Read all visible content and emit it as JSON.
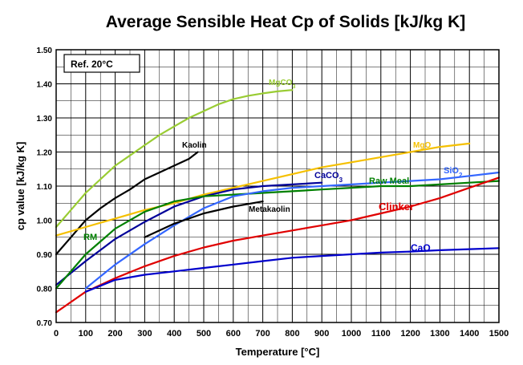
{
  "chart_data": {
    "type": "line",
    "title": "Average Sensible Heat Cp of Solids [kJ/kg K]",
    "xlabel": "Temperature [°C]",
    "ylabel": "cp value [kJ/kg K]",
    "annotation": "Ref. 20°C",
    "xlim": [
      0,
      1500
    ],
    "ylim": [
      0.7,
      1.5
    ],
    "xticks": [
      0,
      100,
      200,
      300,
      400,
      500,
      600,
      700,
      800,
      900,
      1000,
      1100,
      1200,
      1300,
      1400,
      1500
    ],
    "yticks": [
      "0.70",
      "0.80",
      "0.90",
      "1.00",
      "1.10",
      "1.20",
      "1.30",
      "1.40",
      "1.50"
    ],
    "grid": true,
    "series": [
      {
        "name": "MgCO3",
        "label_main": "MgCO",
        "label_sub": "3",
        "color": "#99cc33",
        "x": [
          0,
          50,
          100,
          150,
          200,
          250,
          300,
          350,
          400,
          450,
          500,
          550,
          600,
          650,
          700,
          750,
          800
        ],
        "y": [
          0.98,
          1.03,
          1.08,
          1.12,
          1.16,
          1.19,
          1.22,
          1.25,
          1.275,
          1.3,
          1.32,
          1.34,
          1.355,
          1.365,
          1.372,
          1.378,
          1.382
        ]
      },
      {
        "name": "Kaolin",
        "label_main": "Kaolin",
        "color": "#000000",
        "x": [
          0,
          50,
          100,
          150,
          200,
          250,
          300,
          350,
          400,
          450,
          480
        ],
        "y": [
          0.9,
          0.95,
          1.0,
          1.035,
          1.065,
          1.09,
          1.12,
          1.14,
          1.16,
          1.18,
          1.2
        ]
      },
      {
        "name": "MgO",
        "label_main": "MgO",
        "color": "#f5c000",
        "x": [
          0,
          100,
          200,
          300,
          400,
          500,
          600,
          700,
          800,
          900,
          1000,
          1100,
          1200,
          1300,
          1400
        ],
        "y": [
          0.955,
          0.98,
          1.005,
          1.03,
          1.05,
          1.075,
          1.095,
          1.115,
          1.135,
          1.155,
          1.17,
          1.185,
          1.2,
          1.215,
          1.225
        ]
      },
      {
        "name": "CaCO3",
        "label_main": "CaCO",
        "label_sub": "3",
        "color": "#000099",
        "x": [
          0,
          100,
          200,
          300,
          400,
          500,
          600,
          700,
          800,
          900
        ],
        "y": [
          0.81,
          0.88,
          0.945,
          0.995,
          1.04,
          1.07,
          1.09,
          1.1,
          1.105,
          1.11
        ]
      },
      {
        "name": "Raw Meal",
        "label_main": "Raw Meal",
        "color": "#008000",
        "x": [
          0,
          100,
          200,
          300,
          400,
          500,
          600,
          700,
          800,
          900,
          1000,
          1100,
          1200,
          1300,
          1400,
          1500
        ],
        "y": [
          0.8,
          0.9,
          0.975,
          1.025,
          1.055,
          1.07,
          1.075,
          1.08,
          1.085,
          1.09,
          1.095,
          1.1,
          1.1,
          1.105,
          1.11,
          1.115
        ]
      },
      {
        "name": "SiO2",
        "label_main": "SiO",
        "label_sub": "2",
        "color": "#3366ff",
        "x": [
          100,
          200,
          300,
          400,
          500,
          600,
          700,
          800,
          900,
          1000,
          1100,
          1200,
          1300,
          1400,
          1500
        ],
        "y": [
          0.8,
          0.87,
          0.93,
          0.985,
          1.035,
          1.07,
          1.085,
          1.095,
          1.1,
          1.105,
          1.11,
          1.115,
          1.12,
          1.13,
          1.14
        ]
      },
      {
        "name": "Metakaolin",
        "label_main": "Metakaolin",
        "color": "#000000",
        "x": [
          300,
          400,
          500,
          600,
          700
        ],
        "y": [
          0.95,
          0.99,
          1.02,
          1.04,
          1.055
        ]
      },
      {
        "name": "Clinker",
        "label_main": "Clinker",
        "color": "#e00000",
        "x": [
          0,
          100,
          200,
          300,
          400,
          500,
          600,
          700,
          800,
          900,
          1000,
          1100,
          1200,
          1300,
          1400,
          1500
        ],
        "y": [
          0.73,
          0.79,
          0.83,
          0.865,
          0.895,
          0.92,
          0.94,
          0.955,
          0.97,
          0.985,
          1.0,
          1.02,
          1.04,
          1.065,
          1.095,
          1.125
        ]
      },
      {
        "name": "CaO",
        "label_main": "CaO",
        "color": "#0000cc",
        "x": [
          100,
          200,
          300,
          400,
          500,
          600,
          700,
          800,
          900,
          1000,
          1100,
          1200,
          1300,
          1400,
          1500
        ],
        "y": [
          0.79,
          0.825,
          0.84,
          0.85,
          0.86,
          0.87,
          0.88,
          0.89,
          0.895,
          0.9,
          0.905,
          0.908,
          0.912,
          0.915,
          0.918
        ]
      }
    ]
  }
}
